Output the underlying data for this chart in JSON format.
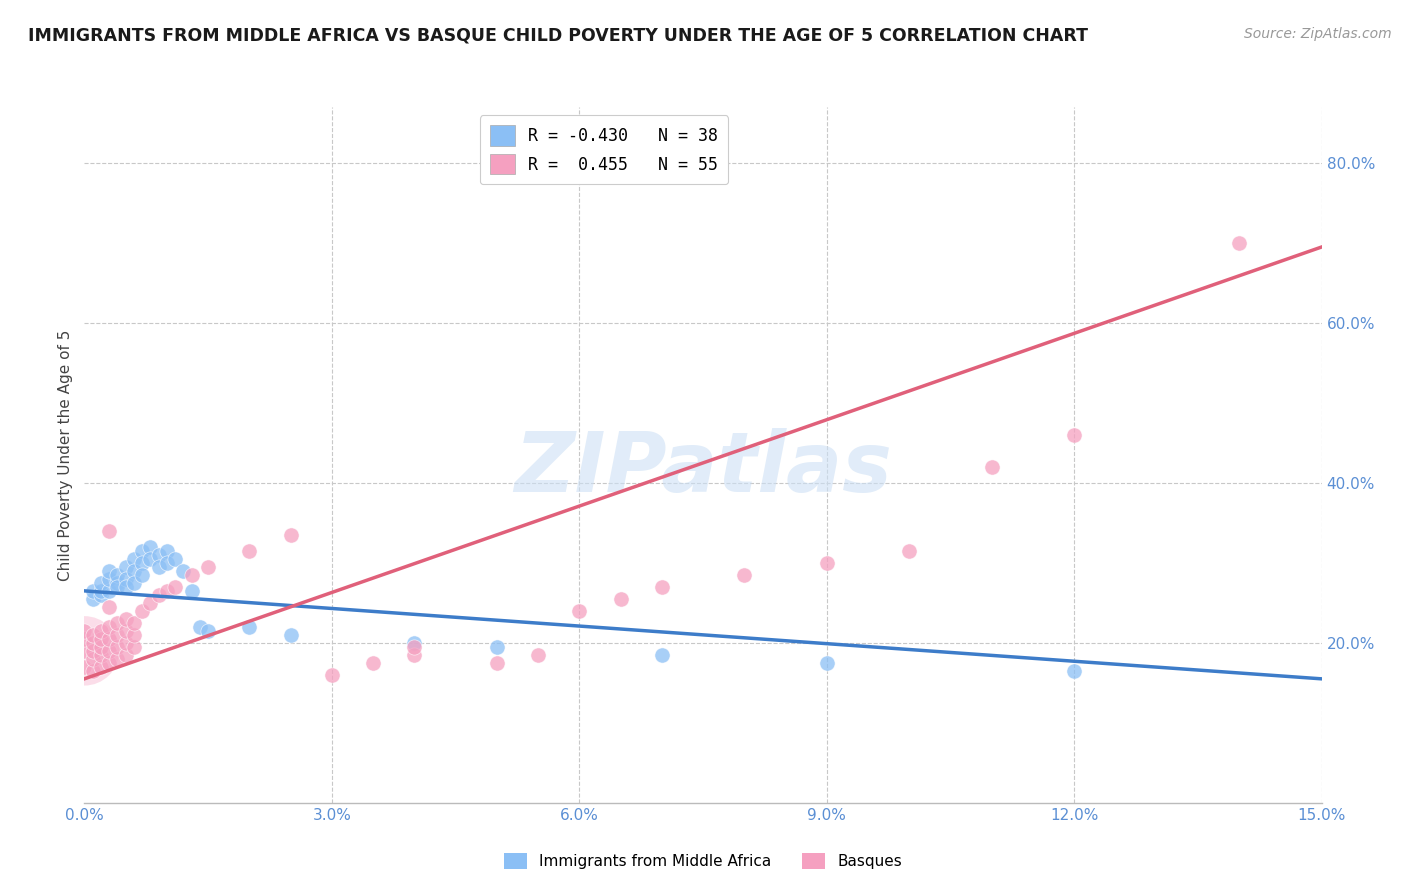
{
  "title": "IMMIGRANTS FROM MIDDLE AFRICA VS BASQUE CHILD POVERTY UNDER THE AGE OF 5 CORRELATION CHART",
  "source": "Source: ZipAtlas.com",
  "ylabel": "Child Poverty Under the Age of 5",
  "x_min": 0.0,
  "x_max": 0.15,
  "y_min": 0.0,
  "y_max": 0.87,
  "x_ticks": [
    0.0,
    0.03,
    0.06,
    0.09,
    0.12,
    0.15
  ],
  "x_tick_labels": [
    "0.0%",
    "3.0%",
    "6.0%",
    "9.0%",
    "12.0%",
    "15.0%"
  ],
  "y_ticks_right": [
    0.2,
    0.4,
    0.6,
    0.8
  ],
  "y_tick_labels_right": [
    "20.0%",
    "40.0%",
    "60.0%",
    "80.0%"
  ],
  "legend_entry1_label": "R = -0.430   N = 38",
  "legend_entry2_label": "R =  0.455   N = 55",
  "legend_entry1_color": "#8bbff5",
  "legend_entry2_color": "#f5a0c0",
  "watermark": "ZIPatlas",
  "blue_color": "#8bbff5",
  "pink_color": "#f5a0c0",
  "blue_line_color": "#3d7cc9",
  "pink_line_color": "#e0607a",
  "blue_scatter": [
    [
      0.001,
      0.255
    ],
    [
      0.001,
      0.265
    ],
    [
      0.002,
      0.26
    ],
    [
      0.002,
      0.265
    ],
    [
      0.002,
      0.275
    ],
    [
      0.003,
      0.265
    ],
    [
      0.003,
      0.28
    ],
    [
      0.003,
      0.29
    ],
    [
      0.004,
      0.275
    ],
    [
      0.004,
      0.285
    ],
    [
      0.004,
      0.27
    ],
    [
      0.005,
      0.295
    ],
    [
      0.005,
      0.28
    ],
    [
      0.005,
      0.27
    ],
    [
      0.006,
      0.305
    ],
    [
      0.006,
      0.29
    ],
    [
      0.006,
      0.275
    ],
    [
      0.007,
      0.315
    ],
    [
      0.007,
      0.3
    ],
    [
      0.007,
      0.285
    ],
    [
      0.008,
      0.32
    ],
    [
      0.008,
      0.305
    ],
    [
      0.009,
      0.31
    ],
    [
      0.009,
      0.295
    ],
    [
      0.01,
      0.315
    ],
    [
      0.01,
      0.3
    ],
    [
      0.011,
      0.305
    ],
    [
      0.012,
      0.29
    ],
    [
      0.013,
      0.265
    ],
    [
      0.014,
      0.22
    ],
    [
      0.015,
      0.215
    ],
    [
      0.02,
      0.22
    ],
    [
      0.025,
      0.21
    ],
    [
      0.04,
      0.2
    ],
    [
      0.05,
      0.195
    ],
    [
      0.07,
      0.185
    ],
    [
      0.09,
      0.175
    ],
    [
      0.12,
      0.165
    ]
  ],
  "pink_scatter": [
    [
      0.0,
      0.17
    ],
    [
      0.0,
      0.19
    ],
    [
      0.0,
      0.205
    ],
    [
      0.0,
      0.215
    ],
    [
      0.001,
      0.165
    ],
    [
      0.001,
      0.18
    ],
    [
      0.001,
      0.19
    ],
    [
      0.001,
      0.2
    ],
    [
      0.001,
      0.21
    ],
    [
      0.002,
      0.17
    ],
    [
      0.002,
      0.185
    ],
    [
      0.002,
      0.195
    ],
    [
      0.002,
      0.205
    ],
    [
      0.002,
      0.215
    ],
    [
      0.003,
      0.175
    ],
    [
      0.003,
      0.19
    ],
    [
      0.003,
      0.205
    ],
    [
      0.003,
      0.22
    ],
    [
      0.003,
      0.245
    ],
    [
      0.003,
      0.34
    ],
    [
      0.004,
      0.18
    ],
    [
      0.004,
      0.195
    ],
    [
      0.004,
      0.21
    ],
    [
      0.004,
      0.225
    ],
    [
      0.005,
      0.185
    ],
    [
      0.005,
      0.2
    ],
    [
      0.005,
      0.215
    ],
    [
      0.005,
      0.23
    ],
    [
      0.006,
      0.195
    ],
    [
      0.006,
      0.21
    ],
    [
      0.006,
      0.225
    ],
    [
      0.007,
      0.24
    ],
    [
      0.008,
      0.25
    ],
    [
      0.009,
      0.26
    ],
    [
      0.01,
      0.265
    ],
    [
      0.011,
      0.27
    ],
    [
      0.013,
      0.285
    ],
    [
      0.015,
      0.295
    ],
    [
      0.02,
      0.315
    ],
    [
      0.025,
      0.335
    ],
    [
      0.03,
      0.16
    ],
    [
      0.035,
      0.175
    ],
    [
      0.04,
      0.185
    ],
    [
      0.04,
      0.195
    ],
    [
      0.05,
      0.175
    ],
    [
      0.055,
      0.185
    ],
    [
      0.06,
      0.24
    ],
    [
      0.065,
      0.255
    ],
    [
      0.07,
      0.27
    ],
    [
      0.08,
      0.285
    ],
    [
      0.09,
      0.3
    ],
    [
      0.1,
      0.315
    ],
    [
      0.11,
      0.42
    ],
    [
      0.12,
      0.46
    ],
    [
      0.14,
      0.7
    ]
  ],
  "blue_line_x": [
    0.0,
    0.15
  ],
  "blue_line_y": [
    0.265,
    0.155
  ],
  "pink_line_x": [
    0.0,
    0.15
  ],
  "pink_line_y": [
    0.155,
    0.695
  ],
  "grid_color": "#c8c8c8",
  "bg_color": "#ffffff",
  "tick_color": "#5b8fd4",
  "label_color": "#444444"
}
